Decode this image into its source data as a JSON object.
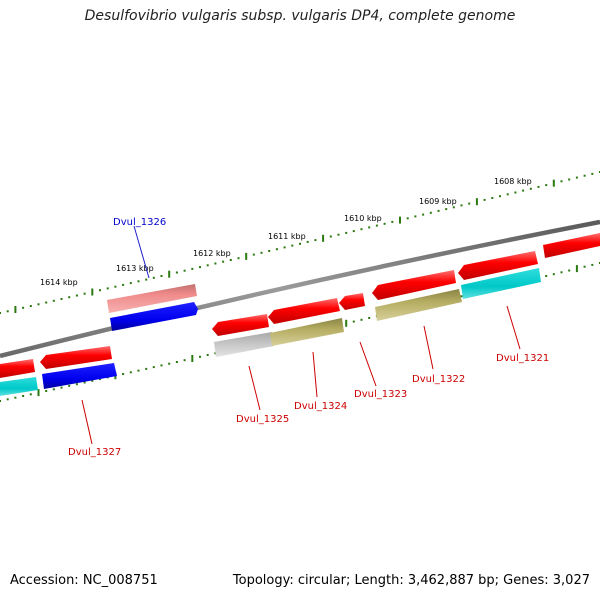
{
  "title": "Desulfovibrio vulgaris subsp. vulgaris DP4, complete genome",
  "footer": {
    "accession": "Accession: NC_008751",
    "summary": "Topology: circular; Length: 3,462,887 bp; Genes: 3,027"
  },
  "colors": {
    "backbone": "#888888",
    "tick": "#2a7a10",
    "cds": "#ff0000",
    "cds_light": "#f08080",
    "blue": "#0000ee",
    "cyan": "#00cccc",
    "olive": "#b5ad62",
    "gray": "#c4c4c4",
    "label_red": "#cc0000",
    "label_blue": "#0000cc"
  },
  "tick_labels": [
    "1614 kbp",
    "1613 kbp",
    "1612 kbp",
    "1611 kbp",
    "1610 kbp",
    "1609 kbp",
    "1608 kbp"
  ],
  "gene_labels": [
    {
      "text": "Dvul_1326",
      "color": "label_blue"
    },
    {
      "text": "Dvul_1327",
      "color": "label_red"
    },
    {
      "text": "Dvul_1325",
      "color": "label_red"
    },
    {
      "text": "Dvul_1324",
      "color": "label_red"
    },
    {
      "text": "Dvul_1323",
      "color": "label_red"
    },
    {
      "text": "Dvul_1322",
      "color": "label_red"
    },
    {
      "text": "Dvul_1321",
      "color": "label_red"
    }
  ]
}
